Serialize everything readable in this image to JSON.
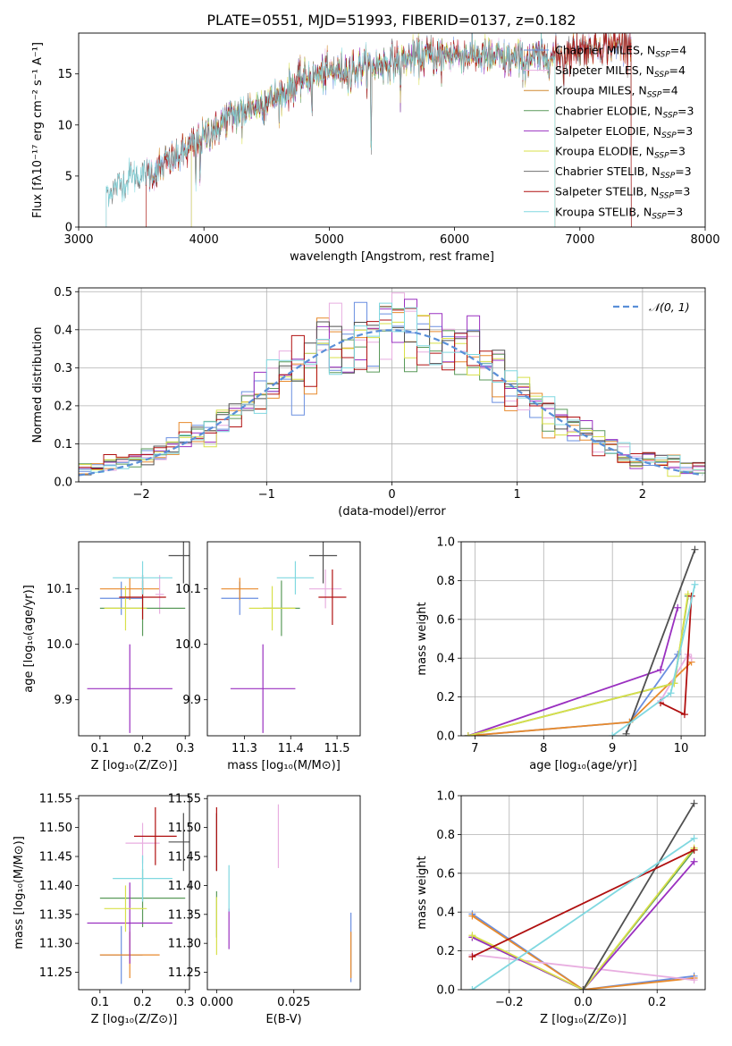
{
  "title": "PLATE=0551, MJD=51993, FIBERID=0137, z=0.182",
  "colors": [
    "#6a8fe0",
    "#e88a2c",
    "#e8aee0",
    "#d08a30",
    "#5a9a5a",
    "#9a30c0",
    "#d8e04a",
    "#505050",
    "#b01010",
    "#80d8e0"
  ],
  "chart_data": [
    {
      "id": "spectrum",
      "type": "line",
      "title": "PLATE=0551, MJD=51993, FIBERID=0137, z=0.182",
      "xlabel": "wavelength [Angstrom, rest frame]",
      "ylabel": "Flux [fλ10⁻¹⁷ erg cm⁻² s⁻¹ A⁻¹]",
      "xlim": [
        3000,
        8000
      ],
      "ylim": [
        0,
        19
      ],
      "xticks": [
        3000,
        4000,
        5000,
        6000,
        7000,
        8000
      ],
      "yticks": [
        0,
        5,
        10,
        15
      ],
      "legend_position": "top-right",
      "series": [
        {
          "name": "Chabrier MILES, N_SSP=4",
          "color": "#6a8fe0",
          "x_range": [
            3540,
            7410
          ]
        },
        {
          "name": "Salpeter MILES, N_SSP=4",
          "color": "#e8aee0",
          "x_range": [
            3540,
            7410
          ]
        },
        {
          "name": "Kroupa MILES, N_SSP=4",
          "color": "#d08a30",
          "x_range": [
            3540,
            7410
          ]
        },
        {
          "name": "Chabrier ELODIE, N_SSP=3",
          "color": "#5a9a5a",
          "x_range": [
            3900,
            6800
          ]
        },
        {
          "name": "Salpeter ELODIE, N_SSP=3",
          "color": "#9a30c0",
          "x_range": [
            3900,
            6800
          ]
        },
        {
          "name": "Kroupa ELODIE, N_SSP=3",
          "color": "#d8e04a",
          "x_range": [
            3900,
            6800
          ]
        },
        {
          "name": "Chabrier STELIB, N_SSP=3",
          "color": "#707070",
          "x_range": [
            3220,
            7410
          ]
        },
        {
          "name": "Salpeter STELIB, N_SSP=3",
          "color": "#b01010",
          "x_range": [
            3540,
            7410
          ]
        },
        {
          "name": "Kroupa STELIB, N_SSP=3",
          "color": "#80d8e0",
          "x_range": [
            3220,
            6800
          ]
        }
      ],
      "flux_anchor_x": [
        3220,
        3400,
        3600,
        3800,
        4000,
        4200,
        4400,
        4600,
        4800,
        5000,
        5200,
        5400,
        5600,
        5800,
        6000,
        6200,
        6400,
        6600,
        6800,
        7000,
        7200,
        7400
      ],
      "flux_anchor_y": [
        3.3,
        4.8,
        5.3,
        7.0,
        8.8,
        10.8,
        11.8,
        12.8,
        14.5,
        15.2,
        15.6,
        15.9,
        16.4,
        16.8,
        17.0,
        16.8,
        16.4,
        16.5,
        16.8,
        17.5,
        17.8,
        18.0
      ]
    },
    {
      "id": "residuals",
      "type": "line",
      "xlabel": "(data-model)/error",
      "ylabel": "Normed distribution",
      "xlim": [
        -2.5,
        2.5
      ],
      "ylim": [
        0,
        0.51
      ],
      "xticks": [
        -2,
        -1,
        0,
        1,
        2
      ],
      "xtick_labels": [
        "−2",
        "−1",
        "0",
        "1",
        "2"
      ],
      "yticks": [
        0.0,
        0.1,
        0.2,
        0.3,
        0.4,
        0.5
      ],
      "ytick_labels": [
        "0.0",
        "0.1",
        "0.2",
        "0.3",
        "0.4",
        "0.5"
      ],
      "grid": true,
      "legend_position": "top-right",
      "reference_curve": {
        "name": "𝒩(0, 1)",
        "color": "#5a8fd8"
      },
      "bin_width": 0.1,
      "n_histograms": 9
    },
    {
      "id": "age-vs-z",
      "type": "scatter",
      "xlabel": "Z [log₁₀(Z/Z⊙)]",
      "ylabel": "age  [log₁₀(age/yr)]",
      "xlim": [
        0.05,
        0.31
      ],
      "ylim": [
        9.835,
        10.185
      ],
      "xticks": [
        0.1,
        0.2,
        0.3
      ],
      "yticks": [
        9.9,
        10.0,
        10.1
      ],
      "points": [
        {
          "x": 0.15,
          "y": 10.083,
          "xerr": 0.05,
          "yerr": 0.03,
          "color": "#6a8fe0"
        },
        {
          "x": 0.17,
          "y": 10.1,
          "xerr": 0.07,
          "yerr": 0.02,
          "color": "#e88a2c"
        },
        {
          "x": 0.24,
          "y": 10.09,
          "xerr": 0.01,
          "yerr": 0.035,
          "color": "#e8aee0"
        },
        {
          "x": 0.2,
          "y": 10.065,
          "xerr": 0.1,
          "yerr": 0.05,
          "color": "#5a9a5a"
        },
        {
          "x": 0.17,
          "y": 9.92,
          "xerr": 0.1,
          "yerr": 0.08,
          "color": "#9a30c0"
        },
        {
          "x": 0.16,
          "y": 10.065,
          "xerr": 0.05,
          "yerr": 0.04,
          "color": "#d8e04a"
        },
        {
          "x": 0.296,
          "y": 10.16,
          "xerr": 0.035,
          "yerr": 0.05,
          "color": "#505050"
        },
        {
          "x": 0.2,
          "y": 10.085,
          "xerr": 0.055,
          "yerr": 0.04,
          "color": "#b01010"
        },
        {
          "x": 0.2,
          "y": 10.12,
          "xerr": 0.07,
          "yerr": 0.03,
          "color": "#80d8e0"
        }
      ]
    },
    {
      "id": "age-vs-mass",
      "type": "scatter",
      "xlabel": "mass [log₁₀(M/M⊙)]",
      "xlim": [
        11.22,
        11.55
      ],
      "ylim": [
        9.835,
        10.185
      ],
      "xticks": [
        11.3,
        11.4,
        11.5
      ],
      "yticks": [
        9.9,
        10.0,
        10.1
      ],
      "points": [
        {
          "x": 11.29,
          "y": 10.083,
          "xerr": 0.04,
          "yerr": 0.03,
          "color": "#6a8fe0"
        },
        {
          "x": 11.29,
          "y": 10.1,
          "xerr": 0.04,
          "yerr": 0.02,
          "color": "#e88a2c"
        },
        {
          "x": 11.475,
          "y": 10.1,
          "xerr": 0.035,
          "yerr": 0.035,
          "color": "#e8aee0"
        },
        {
          "x": 11.38,
          "y": 10.065,
          "xerr": 0.04,
          "yerr": 0.05,
          "color": "#5a9a5a"
        },
        {
          "x": 11.34,
          "y": 9.92,
          "xerr": 0.07,
          "yerr": 0.08,
          "color": "#9a30c0"
        },
        {
          "x": 11.36,
          "y": 10.065,
          "xerr": 0.05,
          "yerr": 0.04,
          "color": "#d8e04a"
        },
        {
          "x": 11.47,
          "y": 10.16,
          "xerr": 0.03,
          "yerr": 0.05,
          "color": "#505050"
        },
        {
          "x": 11.49,
          "y": 10.085,
          "xerr": 0.03,
          "yerr": 0.05,
          "color": "#b01010"
        },
        {
          "x": 11.41,
          "y": 10.12,
          "xerr": 0.04,
          "yerr": 0.03,
          "color": "#80d8e0"
        }
      ]
    },
    {
      "id": "weight-vs-age",
      "type": "line",
      "xlabel": "age  [log₁₀(age/yr)]",
      "ylabel": "mass weight",
      "xlim": [
        6.8,
        10.35
      ],
      "ylim": [
        0,
        1.0
      ],
      "xticks": [
        7,
        8,
        9,
        10
      ],
      "yticks": [
        0.0,
        0.2,
        0.4,
        0.6,
        0.8,
        1.0
      ],
      "grid": true,
      "series": [
        {
          "color": "#6a8fe0",
          "points": [
            [
              6.9,
              0
            ],
            [
              9.25,
              0.07
            ],
            [
              9.95,
              0.42
            ]
          ]
        },
        {
          "color": "#e88a2c",
          "points": [
            [
              6.9,
              0
            ],
            [
              9.25,
              0.07
            ],
            [
              10.15,
              0.38
            ]
          ]
        },
        {
          "color": "#e8aee0",
          "points": [
            [
              9.7,
              0.18
            ],
            [
              10.1,
              0.42
            ],
            [
              10.15,
              0.4
            ]
          ]
        },
        {
          "color": "#5a9a5a",
          "points": [
            [
              6.9,
              0
            ],
            [
              9.9,
              0.27
            ],
            [
              10.1,
              0.72
            ]
          ]
        },
        {
          "color": "#9a30c0",
          "points": [
            [
              6.9,
              0
            ],
            [
              9.7,
              0.34
            ],
            [
              9.95,
              0.66
            ]
          ]
        },
        {
          "color": "#d8e04a",
          "points": [
            [
              6.9,
              0
            ],
            [
              9.9,
              0.27
            ],
            [
              10.1,
              0.73
            ]
          ]
        },
        {
          "color": "#505050",
          "points": [
            [
              9.2,
              0.01
            ],
            [
              10.2,
              0.96
            ]
          ]
        },
        {
          "color": "#b01010",
          "points": [
            [
              9.7,
              0.17
            ],
            [
              10.05,
              0.11
            ],
            [
              10.15,
              0.72
            ]
          ]
        },
        {
          "color": "#80d8e0",
          "points": [
            [
              9.0,
              0
            ],
            [
              9.85,
              0.22
            ],
            [
              10.2,
              0.78
            ]
          ]
        }
      ]
    },
    {
      "id": "mass-vs-z",
      "type": "scatter",
      "xlabel": "Z [log₁₀(Z/Z⊙)]",
      "ylabel": "mass [log₁₀(M/M⊙)]",
      "xlim": [
        0.05,
        0.31
      ],
      "ylim": [
        11.22,
        11.555
      ],
      "xticks": [
        0.1,
        0.2,
        0.3
      ],
      "yticks": [
        11.25,
        11.3,
        11.35,
        11.4,
        11.45,
        11.5,
        11.55
      ],
      "points": [
        {
          "x": 0.15,
          "y": 11.28,
          "xerr": 0.05,
          "yerr": 0.05,
          "color": "#6a8fe0"
        },
        {
          "x": 0.17,
          "y": 11.28,
          "xerr": 0.07,
          "yerr": 0.04,
          "color": "#e88a2c"
        },
        {
          "x": 0.2,
          "y": 11.473,
          "xerr": 0.04,
          "yerr": 0.035,
          "color": "#e8aee0"
        },
        {
          "x": 0.2,
          "y": 11.378,
          "xerr": 0.1,
          "yerr": 0.05,
          "color": "#5a9a5a"
        },
        {
          "x": 0.17,
          "y": 11.335,
          "xerr": 0.1,
          "yerr": 0.07,
          "color": "#9a30c0"
        },
        {
          "x": 0.16,
          "y": 11.36,
          "xerr": 0.05,
          "yerr": 0.04,
          "color": "#d8e04a"
        },
        {
          "x": 0.296,
          "y": 11.475,
          "xerr": 0.035,
          "yerr": 0.05,
          "color": "#505050"
        },
        {
          "x": 0.23,
          "y": 11.485,
          "xerr": 0.05,
          "yerr": 0.05,
          "color": "#b01010"
        },
        {
          "x": 0.2,
          "y": 11.412,
          "xerr": 0.07,
          "yerr": 0.04,
          "color": "#80d8e0"
        }
      ]
    },
    {
      "id": "mass-vs-ebv",
      "type": "scatter",
      "xlabel": "E(B-V)",
      "xlim": [
        -0.003,
        0.0465
      ],
      "ylim": [
        11.22,
        11.555
      ],
      "xticks": [
        0.0,
        0.025
      ],
      "xtick_labels": [
        "0.000",
        "0.025"
      ],
      "yticks": [
        11.25,
        11.3,
        11.35,
        11.4,
        11.45,
        11.5,
        11.55
      ],
      "points": [
        {
          "x": 0.0435,
          "y": 11.293,
          "xerr": 0,
          "yerr": 0.06,
          "color": "#6a8fe0"
        },
        {
          "x": 0.0435,
          "y": 11.28,
          "xerr": 0,
          "yerr": 0.04,
          "color": "#e88a2c"
        },
        {
          "x": 0.02,
          "y": 11.485,
          "xerr": 0,
          "yerr": 0.055,
          "color": "#e8aee0"
        },
        {
          "x": 0.0,
          "y": 11.35,
          "xerr": 0,
          "yerr": 0.04,
          "color": "#5a9a5a"
        },
        {
          "x": 0.004,
          "y": 11.325,
          "xerr": 0,
          "yerr": 0.035,
          "color": "#9a30c0"
        },
        {
          "x": 0.0,
          "y": 11.33,
          "xerr": 0,
          "yerr": 0.05,
          "color": "#d8e04a"
        },
        {
          "x": 0.0,
          "y": 11.475,
          "xerr": 0,
          "yerr": 0.05,
          "color": "#505050"
        },
        {
          "x": 0.0,
          "y": 11.48,
          "xerr": 0,
          "yerr": 0.055,
          "color": "#b01010"
        },
        {
          "x": 0.004,
          "y": 11.395,
          "xerr": 0,
          "yerr": 0.04,
          "color": "#80d8e0"
        }
      ]
    },
    {
      "id": "weight-vs-z",
      "type": "line",
      "xlabel": "Z [log₁₀(Z/Z⊙)]",
      "ylabel": "mass weight",
      "xlim": [
        -0.33,
        0.33
      ],
      "ylim": [
        0,
        1.0
      ],
      "xticks": [
        -0.2,
        0.0,
        0.2
      ],
      "xtick_labels": [
        "−0.2",
        "0.0",
        "0.2"
      ],
      "yticks": [
        0.0,
        0.2,
        0.4,
        0.6,
        0.8,
        1.0
      ],
      "grid": true,
      "series": [
        {
          "color": "#6a8fe0",
          "points": [
            [
              -0.3,
              0.39
            ],
            [
              0.0,
              0.0
            ],
            [
              0.3,
              0.07
            ]
          ]
        },
        {
          "color": "#e88a2c",
          "points": [
            [
              -0.3,
              0.38
            ],
            [
              0.0,
              0.0
            ],
            [
              0.3,
              0.06
            ]
          ]
        },
        {
          "color": "#e8aee0",
          "points": [
            [
              -0.3,
              0.18
            ],
            [
              0.3,
              0.05
            ]
          ]
        },
        {
          "color": "#5a9a5a",
          "points": [
            [
              -0.3,
              0.27
            ],
            [
              0.0,
              0.0
            ],
            [
              0.3,
              0.72
            ]
          ]
        },
        {
          "color": "#9a30c0",
          "points": [
            [
              -0.3,
              0.27
            ],
            [
              0.0,
              0.0
            ],
            [
              0.3,
              0.66
            ]
          ]
        },
        {
          "color": "#d8e04a",
          "points": [
            [
              -0.3,
              0.28
            ],
            [
              0.0,
              0.0
            ],
            [
              0.3,
              0.73
            ]
          ]
        },
        {
          "color": "#505050",
          "points": [
            [
              0.0,
              0.0
            ],
            [
              0.3,
              0.96
            ]
          ]
        },
        {
          "color": "#b01010",
          "points": [
            [
              -0.3,
              0.17
            ],
            [
              0.3,
              0.72
            ]
          ]
        },
        {
          "color": "#80d8e0",
          "points": [
            [
              -0.3,
              0.0
            ],
            [
              0.3,
              0.78
            ]
          ]
        }
      ]
    }
  ]
}
